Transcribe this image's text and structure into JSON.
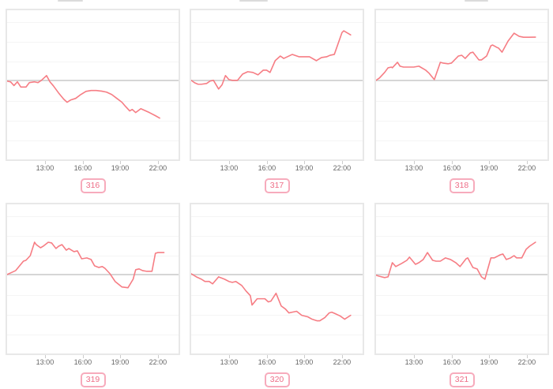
{
  "colors": {
    "line": "#f67d84",
    "baseline": "#d6d6d6",
    "grid": "#f5f5f5",
    "panel_border": "#e8e8e8",
    "tick_label": "#666666",
    "badge_border": "#f7abbc",
    "badge_text": "#ee6e87"
  },
  "xticks": {
    "labels": [
      "13:00",
      "16:00",
      "19:00",
      "22:00"
    ],
    "positions_pct": [
      22.6,
      44.3,
      65.6,
      87.3
    ]
  },
  "chart_data": [
    {
      "type": "line",
      "label": "316",
      "xticks": [
        "13:00",
        "16:00",
        "19:00",
        "22:00"
      ],
      "x_range_time": [
        "~09:50",
        "~22:45"
      ],
      "baseline_pct": 47,
      "y_meaning": "percent offset of plot height from gray reference line (positive = above)",
      "points_pct": [
        [
          0,
          -0.5
        ],
        [
          2,
          -1
        ],
        [
          4,
          -3.5
        ],
        [
          6,
          -1
        ],
        [
          8,
          -4.5
        ],
        [
          11,
          -4.5
        ],
        [
          13,
          -1.5
        ],
        [
          16,
          -1
        ],
        [
          18,
          -1.5
        ],
        [
          20,
          0
        ],
        [
          23,
          3.2
        ],
        [
          25,
          -1
        ],
        [
          27,
          -3.7
        ],
        [
          30,
          -8.4
        ],
        [
          33,
          -12.6
        ],
        [
          35,
          -14.7
        ],
        [
          37,
          -13.2
        ],
        [
          40,
          -12.1
        ],
        [
          43,
          -9.5
        ],
        [
          46,
          -7.4
        ],
        [
          49,
          -6.8
        ],
        [
          52,
          -6.8
        ],
        [
          55,
          -7.2
        ],
        [
          58,
          -7.9
        ],
        [
          61,
          -9.5
        ],
        [
          64,
          -12.1
        ],
        [
          67,
          -14.7
        ],
        [
          69,
          -17.4
        ],
        [
          71.5,
          -20.5
        ],
        [
          73,
          -19.5
        ],
        [
          75,
          -21.6
        ],
        [
          78,
          -19
        ],
        [
          83,
          -21.6
        ],
        [
          86.5,
          -23.7
        ],
        [
          89,
          -25.3
        ]
      ]
    },
    {
      "type": "line",
      "label": "317",
      "xticks": [
        "13:00",
        "16:00",
        "19:00",
        "22:00"
      ],
      "x_range_time": [
        "~09:50",
        "~22:55"
      ],
      "baseline_pct": 47,
      "y_meaning": "percent offset of plot height from gray reference line (positive = above)",
      "points_pct": [
        [
          0,
          0
        ],
        [
          2,
          -1.6
        ],
        [
          4,
          -2.6
        ],
        [
          6,
          -2.6
        ],
        [
          9,
          -2.1
        ],
        [
          11,
          -0.5
        ],
        [
          13,
          0
        ],
        [
          16,
          -5.8
        ],
        [
          18,
          -3
        ],
        [
          20,
          3.2
        ],
        [
          22,
          0.5
        ],
        [
          24,
          0
        ],
        [
          27,
          0
        ],
        [
          30,
          4.2
        ],
        [
          33,
          5.8
        ],
        [
          36,
          5.3
        ],
        [
          39,
          3.7
        ],
        [
          42,
          6.8
        ],
        [
          44,
          6.8
        ],
        [
          46,
          5.3
        ],
        [
          49,
          13.2
        ],
        [
          52,
          16.3
        ],
        [
          54,
          14.7
        ],
        [
          59,
          17.4
        ],
        [
          63,
          15.8
        ],
        [
          67,
          15.8
        ],
        [
          69,
          15.8
        ],
        [
          73,
          13.2
        ],
        [
          76,
          15.3
        ],
        [
          79,
          15.8
        ],
        [
          81,
          16.8
        ],
        [
          83.5,
          17.4
        ],
        [
          88,
          32.1
        ],
        [
          89,
          33.2
        ],
        [
          93,
          30.5
        ]
      ]
    },
    {
      "type": "line",
      "label": "318",
      "xticks": [
        "13:00",
        "16:00",
        "19:00",
        "22:00"
      ],
      "x_range_time": [
        "~09:50",
        "~22:55"
      ],
      "baseline_pct": 47,
      "y_meaning": "percent offset of plot height from gray reference line (positive = above)",
      "points_pct": [
        [
          0,
          0
        ],
        [
          2,
          1.6
        ],
        [
          5,
          5.3
        ],
        [
          7,
          8.4
        ],
        [
          9,
          8.9
        ],
        [
          9.5,
          8.4
        ],
        [
          12.5,
          12.1
        ],
        [
          14,
          9.5
        ],
        [
          16,
          8.9
        ],
        [
          19,
          8.9
        ],
        [
          22,
          8.9
        ],
        [
          25,
          9.5
        ],
        [
          29,
          6.8
        ],
        [
          31,
          4.7
        ],
        [
          34,
          0.5
        ],
        [
          37.5,
          12.1
        ],
        [
          39,
          11.6
        ],
        [
          42,
          11.1
        ],
        [
          44,
          11.6
        ],
        [
          48,
          16.3
        ],
        [
          50,
          16.8
        ],
        [
          52,
          14.7
        ],
        [
          55,
          18.4
        ],
        [
          56.5,
          18.9
        ],
        [
          60,
          13.7
        ],
        [
          61.5,
          13.7
        ],
        [
          64.5,
          16.3
        ],
        [
          67,
          23.2
        ],
        [
          68,
          23.7
        ],
        [
          70.5,
          22.1
        ],
        [
          71.5,
          21.6
        ],
        [
          73.5,
          18.9
        ],
        [
          77,
          26.3
        ],
        [
          80.5,
          31.6
        ],
        [
          83.5,
          29.5
        ],
        [
          86,
          28.9
        ],
        [
          89,
          28.9
        ],
        [
          93,
          29
        ]
      ]
    },
    {
      "type": "line",
      "label": "319",
      "xticks": [
        "13:00",
        "16:00",
        "19:00",
        "22:00"
      ],
      "x_range_time": [
        "~09:50",
        "~22:50"
      ],
      "baseline_pct": 47,
      "y_meaning": "percent offset of plot height from gray reference line (positive = above)",
      "points_pct": [
        [
          0,
          0
        ],
        [
          2,
          1
        ],
        [
          5,
          2.6
        ],
        [
          8,
          6.8
        ],
        [
          9.5,
          8.9
        ],
        [
          11,
          9.5
        ],
        [
          13.5,
          12.6
        ],
        [
          16,
          21.6
        ],
        [
          17,
          20
        ],
        [
          19.5,
          17.9
        ],
        [
          21,
          18.9
        ],
        [
          24,
          21.6
        ],
        [
          26,
          21.1
        ],
        [
          28.5,
          17.4
        ],
        [
          30,
          18.9
        ],
        [
          32,
          20
        ],
        [
          34.5,
          16.3
        ],
        [
          36,
          17.4
        ],
        [
          39,
          15.3
        ],
        [
          41,
          15.8
        ],
        [
          43.5,
          10.5
        ],
        [
          46.5,
          11.1
        ],
        [
          49,
          10
        ],
        [
          51,
          5.8
        ],
        [
          53.5,
          4.7
        ],
        [
          55.5,
          5.3
        ],
        [
          57,
          4.2
        ],
        [
          60,
          0.5
        ],
        [
          63,
          -4.7
        ],
        [
          67,
          -8.4
        ],
        [
          70.5,
          -8.9
        ],
        [
          73.5,
          -3.2
        ],
        [
          75,
          3.2
        ],
        [
          77,
          3.7
        ],
        [
          79,
          2.6
        ],
        [
          81.5,
          2.1
        ],
        [
          84.5,
          2.1
        ],
        [
          86.5,
          14.2
        ],
        [
          88,
          14.7
        ],
        [
          91.5,
          14.7
        ]
      ]
    },
    {
      "type": "line",
      "label": "320",
      "xticks": [
        "13:00",
        "16:00",
        "19:00",
        "22:00"
      ],
      "x_range_time": [
        "~09:50",
        "~22:55"
      ],
      "baseline_pct": 47,
      "y_meaning": "percent offset of plot height from gray reference line (positive = above)",
      "points_pct": [
        [
          0,
          0.5
        ],
        [
          3,
          -1.6
        ],
        [
          6,
          -3.2
        ],
        [
          8,
          -4.7
        ],
        [
          10.5,
          -4.7
        ],
        [
          12.5,
          -6.3
        ],
        [
          16,
          -1.6
        ],
        [
          17,
          -2.1
        ],
        [
          19.5,
          -3.2
        ],
        [
          22,
          -4.7
        ],
        [
          24,
          -5.3
        ],
        [
          26,
          -4.7
        ],
        [
          29.5,
          -7.4
        ],
        [
          32,
          -11.1
        ],
        [
          34.5,
          -14.2
        ],
        [
          35.5,
          -20.5
        ],
        [
          38.5,
          -16.3
        ],
        [
          41,
          -16.3
        ],
        [
          43,
          -16.3
        ],
        [
          45,
          -18.4
        ],
        [
          46.5,
          -17.9
        ],
        [
          49.5,
          -12.6
        ],
        [
          52.5,
          -21.1
        ],
        [
          55,
          -23.2
        ],
        [
          57,
          -25.8
        ],
        [
          59,
          -25.3
        ],
        [
          61.5,
          -24.7
        ],
        [
          64.5,
          -27.4
        ],
        [
          68,
          -28.4
        ],
        [
          70.5,
          -30
        ],
        [
          73.5,
          -31.1
        ],
        [
          75,
          -31.1
        ],
        [
          78,
          -28.9
        ],
        [
          80.5,
          -25.8
        ],
        [
          82,
          -25.3
        ],
        [
          84,
          -26.3
        ],
        [
          87,
          -27.9
        ],
        [
          89.5,
          -30
        ],
        [
          93,
          -27.4
        ]
      ]
    },
    {
      "type": "line",
      "label": "321",
      "xticks": [
        "13:00",
        "16:00",
        "19:00",
        "22:00"
      ],
      "x_range_time": [
        "~09:50",
        "~22:55"
      ],
      "baseline_pct": 47,
      "y_meaning": "percent offset of plot height from gray reference line (positive = above)",
      "points_pct": [
        [
          0,
          -0.5
        ],
        [
          1.5,
          -1.1
        ],
        [
          5,
          -2.1
        ],
        [
          7,
          -1.6
        ],
        [
          9.5,
          7.9
        ],
        [
          11.5,
          5.3
        ],
        [
          15,
          7.4
        ],
        [
          18,
          9.5
        ],
        [
          19.5,
          11.6
        ],
        [
          23,
          6.8
        ],
        [
          25,
          7.9
        ],
        [
          27.5,
          10
        ],
        [
          30,
          14.7
        ],
        [
          33,
          9.5
        ],
        [
          35,
          8.9
        ],
        [
          37.5,
          8.9
        ],
        [
          40.5,
          11.1
        ],
        [
          43.5,
          10
        ],
        [
          46.5,
          7.9
        ],
        [
          49,
          5.3
        ],
        [
          52.5,
          10.5
        ],
        [
          53.5,
          11.1
        ],
        [
          56.5,
          4.7
        ],
        [
          59,
          3.7
        ],
        [
          61.5,
          -1.6
        ],
        [
          63.5,
          -3.2
        ],
        [
          67,
          11.1
        ],
        [
          69,
          11.1
        ],
        [
          72.5,
          13.2
        ],
        [
          74,
          13.7
        ],
        [
          76,
          10
        ],
        [
          78.5,
          11.1
        ],
        [
          80.5,
          12.6
        ],
        [
          82,
          11.1
        ],
        [
          85,
          11.1
        ],
        [
          87.5,
          16.8
        ],
        [
          89.5,
          18.9
        ],
        [
          93,
          21.6
        ]
      ]
    }
  ],
  "layout_hints": {
    "grid": "2 rows x 3 columns of sparkline panels",
    "legend": "none",
    "gridlines": "faint horizontal only",
    "reference_line": "gray horizontal at ~47% of plot height"
  }
}
